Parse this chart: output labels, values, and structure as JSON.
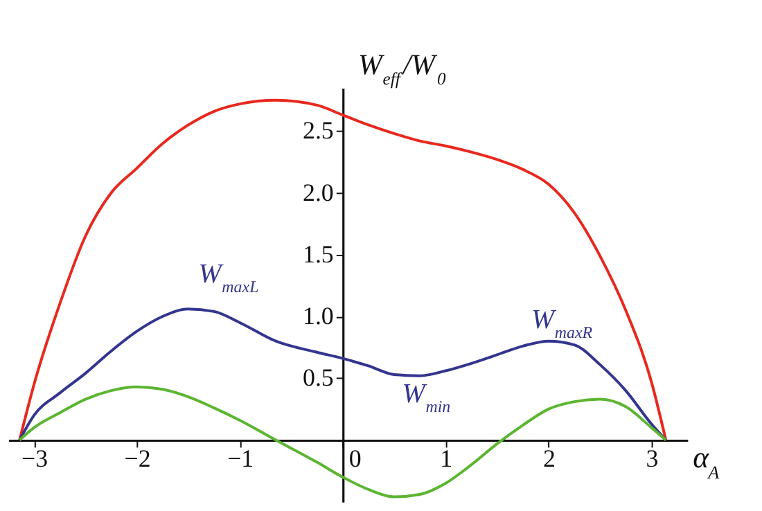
{
  "chart_data": {
    "type": "line",
    "xlabel": "α$_{A}$",
    "ylabel": "W$_{eff}$/W$_{0}$",
    "x": [
      -3.14,
      -3.0,
      -2.75,
      -2.5,
      -2.25,
      -2.0,
      -1.75,
      -1.5,
      -1.25,
      -1.0,
      -0.65,
      -0.25,
      0.0,
      0.25,
      0.5,
      0.75,
      1.0,
      1.25,
      1.5,
      1.75,
      2.0,
      2.25,
      2.5,
      2.75,
      3.0,
      3.14
    ],
    "series": [
      {
        "color": "#e8281e",
        "values": [
          0,
          0.45,
          1.1,
          1.65,
          2.0,
          2.2,
          2.4,
          2.55,
          2.66,
          2.72,
          2.75,
          2.71,
          2.63,
          2.55,
          2.48,
          2.42,
          2.38,
          2.33,
          2.27,
          2.19,
          2.07,
          1.84,
          1.49,
          1.05,
          0.47,
          0
        ]
      },
      {
        "color": "#33358f",
        "values": [
          0,
          0.2,
          0.38,
          0.54,
          0.72,
          0.88,
          1.0,
          1.06,
          1.04,
          0.95,
          0.8,
          0.71,
          0.66,
          0.6,
          0.53,
          0.52,
          0.56,
          0.62,
          0.69,
          0.76,
          0.8,
          0.77,
          0.61,
          0.4,
          0.13,
          0
        ]
      },
      {
        "color": "#5cb531",
        "values": [
          0,
          0.1,
          0.22,
          0.33,
          0.4,
          0.43,
          0.41,
          0.35,
          0.26,
          0.16,
          0.0,
          -0.18,
          -0.3,
          -0.4,
          -0.46,
          -0.44,
          -0.35,
          -0.2,
          -0.03,
          0.12,
          0.25,
          0.31,
          0.33,
          0.27,
          0.1,
          0
        ]
      }
    ],
    "xlim": [
      -3.25,
      3.35
    ],
    "ylim": [
      -0.5,
      2.85
    ],
    "xticks": [
      -3,
      -2,
      -1,
      0,
      1,
      2,
      3
    ],
    "yticks": [
      0.5,
      {
        "value": 1.0,
        "label": "1.0"
      },
      1.5,
      {
        "value": 2.0,
        "label": "2.0"
      },
      2.5
    ],
    "grid": false,
    "annotations": [
      "W$_{maxL}$",
      "W$_{min}$",
      "W$_{maxR}$"
    ]
  }
}
